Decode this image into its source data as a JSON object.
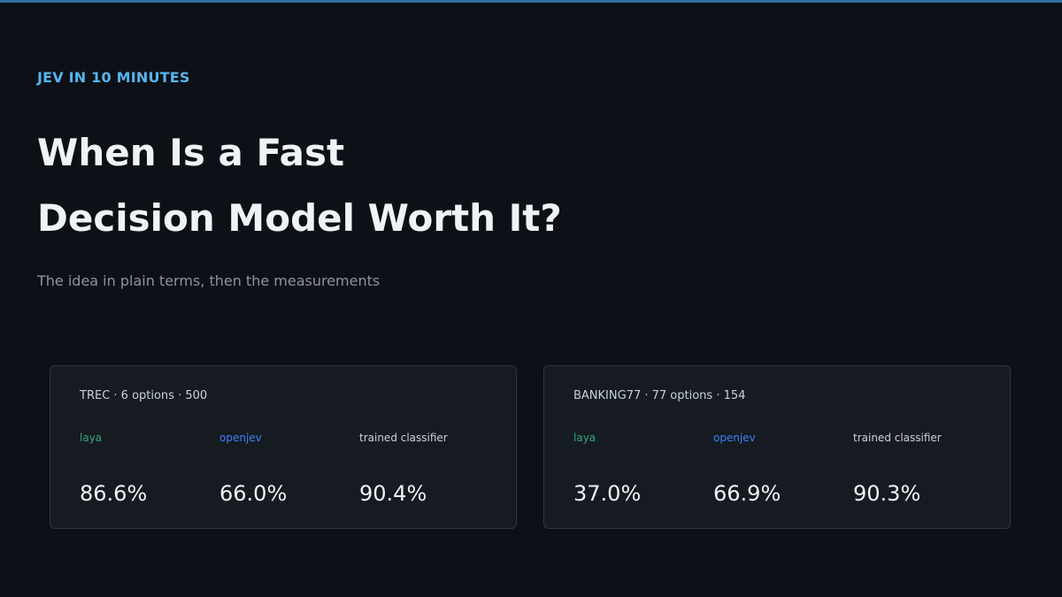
{
  "header": {
    "eyebrow": "JEV IN 10 MINUTES",
    "title_lines": [
      "When Is a Fast",
      "Decision Model Worth It?"
    ],
    "subtitle": "The idea in plain terms, then the measurements"
  },
  "cards": [
    {
      "label": "TREC · 6 options · 500",
      "metrics": [
        {
          "name": "laya",
          "value": "86.6%"
        },
        {
          "name": "openjev",
          "value": "66.0%"
        },
        {
          "name": "trained classifier",
          "value": "90.4%"
        }
      ]
    },
    {
      "label": "BANKING77 · 77 options · 154",
      "metrics": [
        {
          "name": "laya",
          "value": "37.0%"
        },
        {
          "name": "openjev",
          "value": "66.9%"
        },
        {
          "name": "trained classifier",
          "value": "90.3%"
        }
      ]
    }
  ]
}
